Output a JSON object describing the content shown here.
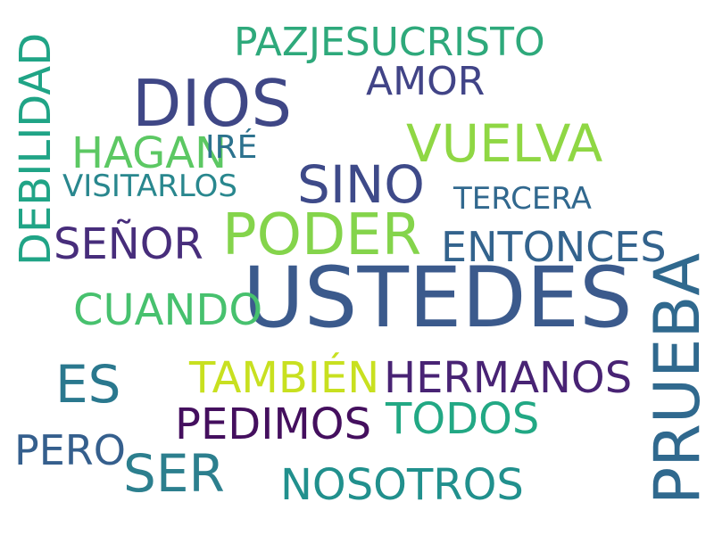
{
  "words": [
    {
      "text": "USTEDES",
      "color": "#3b5a8c"
    },
    {
      "text": "DIOS",
      "color": "#3f4786"
    },
    {
      "text": "PAZJESUCRISTO",
      "color": "#2ea97b"
    },
    {
      "text": "AMOR",
      "color": "#414487"
    },
    {
      "text": "VUELVA",
      "color": "#8fd744"
    },
    {
      "text": "HAGAN",
      "color": "#5cc863"
    },
    {
      "text": "IRÉ",
      "color": "#2c728e"
    },
    {
      "text": "SINO",
      "color": "#3e4a89"
    },
    {
      "text": "VISITARLOS",
      "color": "#29878e"
    },
    {
      "text": "TERCERA",
      "color": "#31688e"
    },
    {
      "text": "PODER",
      "color": "#84d44b"
    },
    {
      "text": "SEÑOR",
      "color": "#472d7b"
    },
    {
      "text": "ENTONCES",
      "color": "#33638d"
    },
    {
      "text": "CUANDO",
      "color": "#47c16e"
    },
    {
      "text": "ES",
      "color": "#2a788e"
    },
    {
      "text": "TAMBIÉN",
      "color": "#c8e020"
    },
    {
      "text": "HERMANOS",
      "color": "#482374"
    },
    {
      "text": "PEDIMOS",
      "color": "#440f5e"
    },
    {
      "text": "TODOS",
      "color": "#22a884"
    },
    {
      "text": "PERO",
      "color": "#355f8d"
    },
    {
      "text": "SER",
      "color": "#2c7f8e"
    },
    {
      "text": "NOSOTROS",
      "color": "#21908d"
    },
    {
      "text": "DEBILIDAD",
      "color": "#20a486"
    },
    {
      "text": "PRUEBA",
      "color": "#30698e"
    }
  ]
}
